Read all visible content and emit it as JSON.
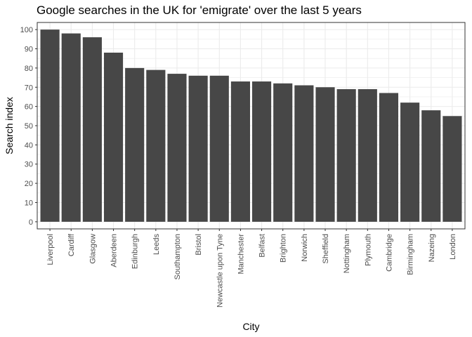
{
  "chart_data": {
    "type": "bar",
    "title": "Google searches in the UK for 'emigrate' over the last 5 years",
    "xlabel": "City",
    "ylabel": "Search index",
    "ylim": [
      0,
      100
    ],
    "yticks": [
      0,
      10,
      20,
      30,
      40,
      50,
      60,
      70,
      80,
      90,
      100
    ],
    "grid": true,
    "categories": [
      "Liverpool",
      "Cardiff",
      "Glasgow",
      "Aberdeen",
      "Edinburgh",
      "Leeds",
      "Southampton",
      "Bristol",
      "Newcastle upon Tyne",
      "Manchester",
      "Belfast",
      "Brighton",
      "Norwich",
      "Sheffield",
      "Nottingham",
      "Plymouth",
      "Cambridge",
      "Birmingham",
      "Nazeing",
      "London"
    ],
    "values": [
      100,
      98,
      96,
      88,
      80,
      79,
      77,
      76,
      76,
      73,
      73,
      72,
      71,
      70,
      69,
      69,
      67,
      62,
      58,
      55
    ],
    "bar_color": "#474747",
    "panel_border_color": "#333333",
    "grid_color": "#ebebeb"
  }
}
